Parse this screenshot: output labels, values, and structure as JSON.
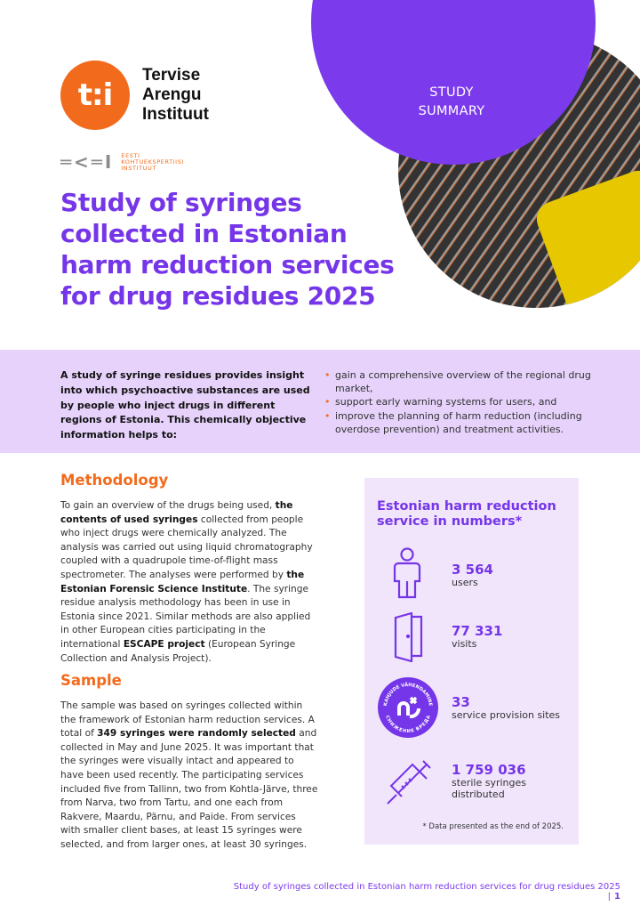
{
  "header": {
    "badge": "STUDY SUMMARY",
    "tai_logo": "tai",
    "tai_name": [
      "Tervise",
      "Arengu",
      "Instituut"
    ],
    "ekei_logo": "EKEI",
    "ekei_name": [
      "EESTI",
      "KOHTUEKSPERTIISI",
      "INSTITUUT"
    ]
  },
  "title": "Study of syringes collected in Estonian harm reduction services for drug residues 2025",
  "intro": {
    "text": "A study of syringe residues provides insight into which psychoactive substances are used by people who inject drugs in different regions of Estonia. This chemically objective information helps to:",
    "bullets": [
      "gain a comprehensive overview of the regional drug market,",
      "support early warning systems for users, and",
      "improve the planning of harm reduction (including overdose prevention) and treatment activities."
    ]
  },
  "methodology": {
    "heading": "Methodology",
    "segments": [
      "To gain an overview of the drugs being used, ",
      "the contents of used syringes",
      " collected from people who inject drugs were chemically analyzed. The analysis was carried out using liquid chromatography coupled with a quadrupole time-of-flight mass spectrometer. The analyses were performed by ",
      "the Estonian Forensic Science Institute",
      ". The syringe residue analysis methodology has been in use in Estonia since 2021. Similar methods are also applied in other European cities participating in the international ",
      "ESCAPE project",
      " (European Syringe Collection and Analysis Project)."
    ]
  },
  "sample": {
    "heading": "Sample",
    "segments": [
      "The sample was based on syringes collected within the framework of Estonian harm reduction services. A total of ",
      "349 syringes were randomly selected",
      " and collected in May and June 2025. It was important that the syringes were visually intact and appeared to have been used recently. The participating services included five from Tallinn, two from Kohtla-Järve, three from Narva, two from Tartu, and one each from Rakvere, Maardu, Pärnu, and Paide. From services with smaller client bases, at least 15 syringes were selected, and from larger ones, at least 30 syringes."
    ]
  },
  "numbers": {
    "title": "Estonian harm reduction service in numbers*",
    "badge_text": [
      "KAHJUDE VÄHENDAMINE",
      "СНИЖЕНИЕ ВРЕДА"
    ],
    "stats": [
      {
        "value": "3 564",
        "label": "users",
        "icon": "person-icon"
      },
      {
        "value": "77 331",
        "label": "visits",
        "icon": "door-icon"
      },
      {
        "value": "33",
        "label": "service provision sites",
        "icon": "harm-reduction-badge-icon"
      },
      {
        "value": "1 759 036",
        "label": "sterile syringes distributed",
        "icon": "syringe-icon"
      }
    ],
    "note": "* Data presented as the end of 2025."
  },
  "footer": {
    "text": "Study of syringes collected in Estonian harm reduction services for drug residues 2025",
    "separator": "|",
    "page": "1"
  },
  "colors": {
    "purple": "#7535e8",
    "orange": "#f26b1d",
    "band": "#e6d2fb",
    "box": "#f1e5fc"
  }
}
